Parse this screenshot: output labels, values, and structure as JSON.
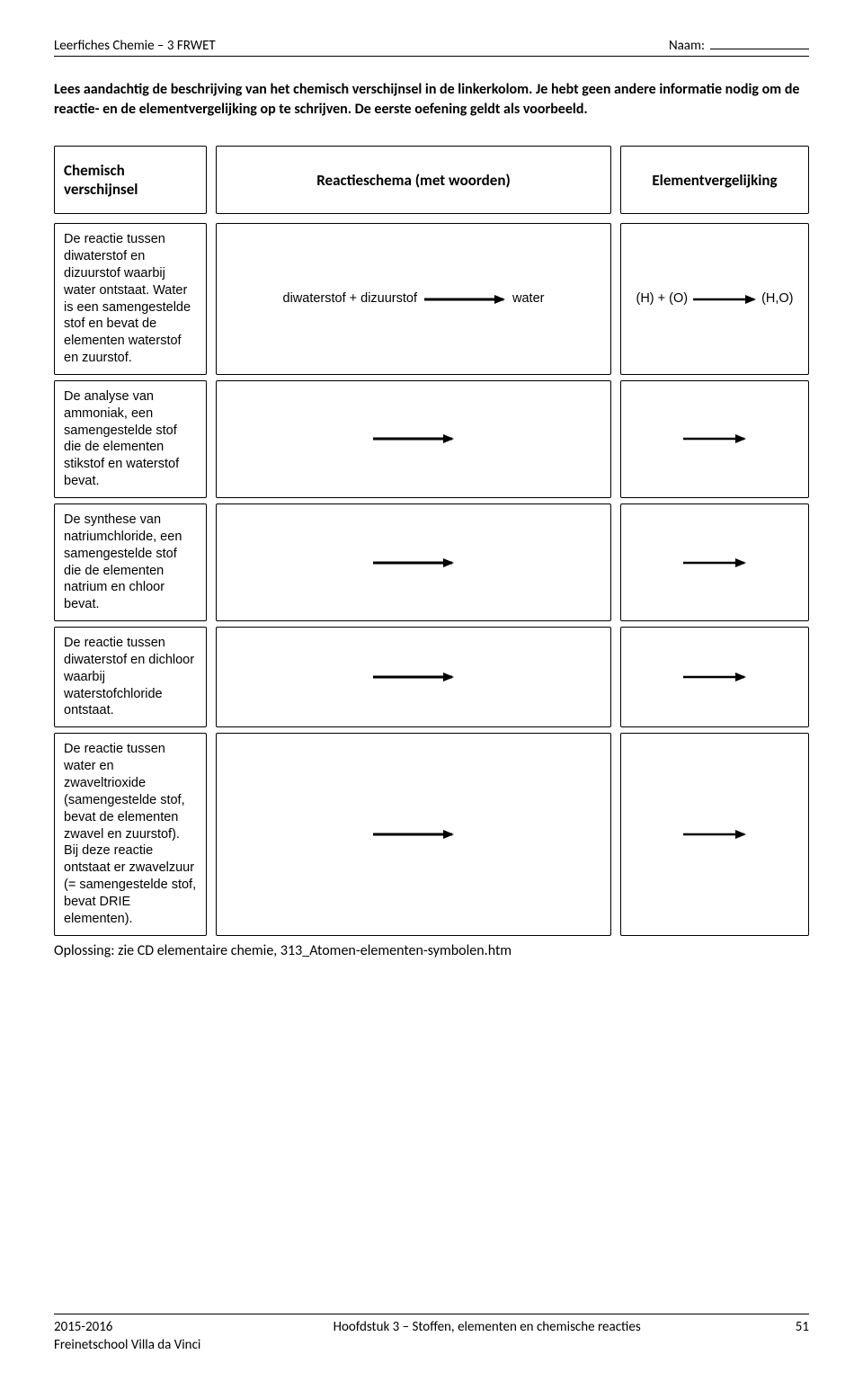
{
  "header": {
    "left": "Leerfiches Chemie – 3 FRWET",
    "right_label": "Naam:"
  },
  "intro": "Lees aandachtig de beschrijving van het chemisch verschijnsel in de linkerkolom. Je hebt geen andere informatie nodig om de reactie- en de elementvergelijking op te schrijven. De eerste oefening geldt als voorbeeld.",
  "columns": {
    "left": "Chemisch verschijnsel",
    "mid": "Reactieschema (met woorden)",
    "right": "Elementvergelijking"
  },
  "rows": [
    {
      "desc": "De reactie tussen diwaterstof en dizuurstof waarbij water ontstaat. Water is een samengestelde stof en bevat de elementen waterstof en zuurstof.",
      "mid_left": "diwaterstof + dizuurstof",
      "mid_right": "water",
      "right_left": "(H) + (O)",
      "right_right": "(H,O)"
    },
    {
      "desc": "De analyse van ammoniak, een samengestelde stof die de elementen stikstof en waterstof bevat.",
      "mid_left": "",
      "mid_right": "",
      "right_left": "",
      "right_right": ""
    },
    {
      "desc": "De synthese van natriumchloride, een samengestelde stof die de elementen natrium en chloor bevat.",
      "mid_left": "",
      "mid_right": "",
      "right_left": "",
      "right_right": ""
    },
    {
      "desc": "De reactie tussen diwaterstof en dichloor waarbij waterstofchloride ontstaat.",
      "mid_left": "",
      "mid_right": "",
      "right_left": "",
      "right_right": ""
    },
    {
      "desc": "De reactie tussen water en zwaveltrioxide (samengestelde stof, bevat de elementen zwavel en zuurstof). Bij deze reactie ontstaat er zwavelzuur (= samengestelde stof, bevat DRIE elementen).",
      "mid_left": "",
      "mid_right": "",
      "right_left": "",
      "right_right": ""
    }
  ],
  "solution": "Oplossing: zie CD elementaire chemie, 313_Atomen-elementen-symbolen.htm",
  "footer": {
    "left_line1": "2015-2016",
    "left_line2": "Freinetschool Villa da Vinci",
    "center": "Hoofdstuk 3 – Stoffen, elementen en chemische reacties",
    "page": "51"
  },
  "arrow": {
    "stroke": "#000000",
    "stroke_width_mid": 3,
    "stroke_width_small": 2.5,
    "length_mid": 90,
    "length_right": 70
  }
}
